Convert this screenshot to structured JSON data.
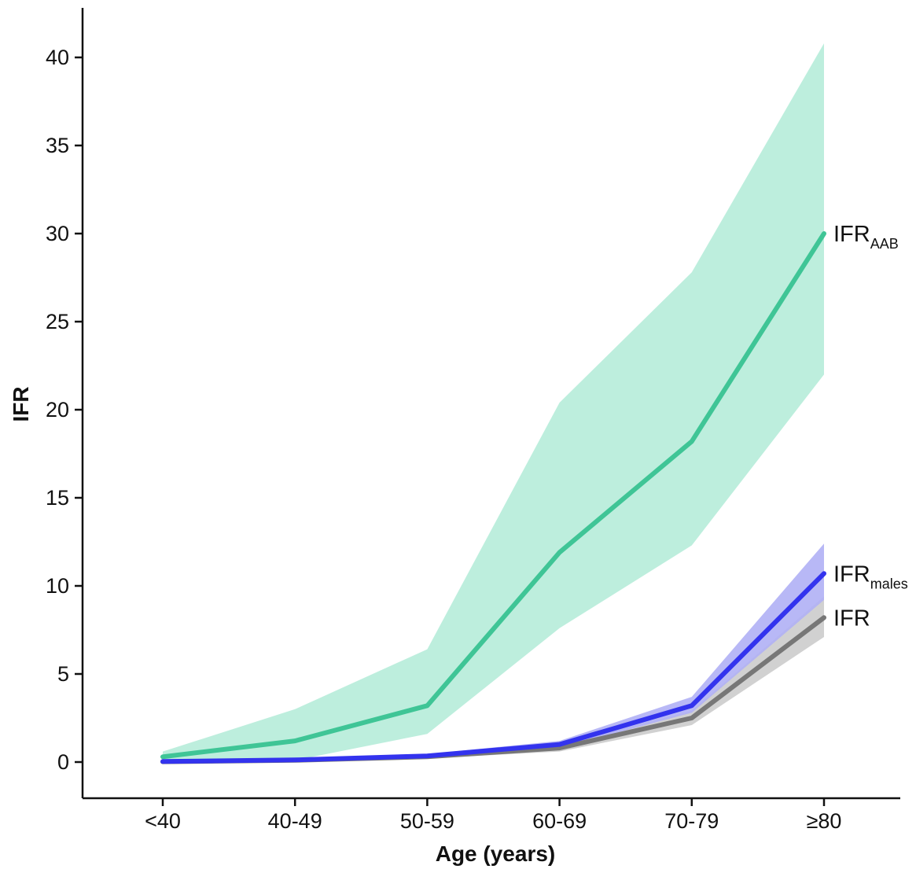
{
  "chart_data": {
    "type": "line",
    "xlabel": "Age (years)",
    "ylabel": "IFR",
    "categories": [
      "<40",
      "40-49",
      "50-59",
      "60-69",
      "70-79",
      "≥80"
    ],
    "ylim": [
      -2,
      42
    ],
    "yticks": [
      0,
      5,
      10,
      15,
      20,
      25,
      30,
      35,
      40
    ],
    "grid": false,
    "legend": "none (direct labels at line ends)",
    "series": [
      {
        "key": "aab",
        "label_main": "IFR",
        "label_sub": "AAB",
        "color": "#3fc596",
        "band_color": "#b6ecd9",
        "values": [
          0.3,
          1.2,
          3.2,
          11.9,
          18.2,
          30.0
        ],
        "lower": [
          0.0,
          0.1,
          1.6,
          7.6,
          12.3,
          22.0
        ],
        "upper": [
          0.6,
          3.0,
          6.4,
          20.4,
          27.8,
          40.8
        ]
      },
      {
        "key": "overall",
        "label_main": "IFR",
        "label_sub": "",
        "color": "#777777",
        "band_color": "#cccccc",
        "values": [
          0.02,
          0.1,
          0.3,
          0.8,
          2.5,
          8.2
        ],
        "lower": [
          0.0,
          0.05,
          0.2,
          0.6,
          2.1,
          7.1
        ],
        "upper": [
          0.05,
          0.15,
          0.4,
          1.0,
          2.9,
          9.4
        ]
      },
      {
        "key": "males",
        "label_main": "IFR",
        "label_sub": "males",
        "color": "#3333ee",
        "band_color": "#b0b0f5",
        "values": [
          0.03,
          0.12,
          0.35,
          1.0,
          3.2,
          10.7
        ],
        "lower": [
          0.0,
          0.08,
          0.25,
          0.8,
          2.8,
          9.2
        ],
        "upper": [
          0.06,
          0.18,
          0.45,
          1.2,
          3.7,
          12.4
        ]
      }
    ]
  }
}
